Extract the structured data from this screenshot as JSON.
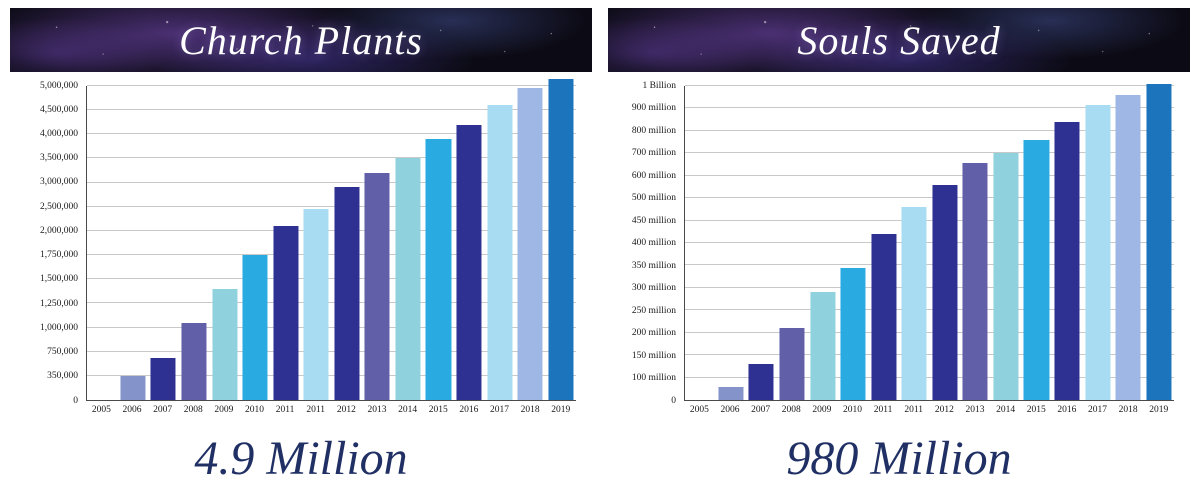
{
  "colors": {
    "periwinkle": "#8494cb",
    "navy": "#2e3192",
    "purple": "#625fa9",
    "light_teal": "#8fd1dd",
    "cyan": "#29abe2",
    "pale_blue": "#a8dcf2",
    "light_periwinkle": "#9fb7e4",
    "medium_blue": "#1c75bc",
    "caption_text": "#203064",
    "gridline": "#c9c9c9",
    "axis": "#4a4a4a"
  },
  "chart_data": [
    {
      "type": "bar",
      "title": "Church Plants",
      "caption": "4.9 Million",
      "xlabel": "",
      "ylabel": "",
      "grid": true,
      "legend": false,
      "x": [
        "2005",
        "2006",
        "2007",
        "2008",
        "2009",
        "2010",
        "2011",
        "2011",
        "2012",
        "2013",
        "2014",
        "2015",
        "2016",
        "2017",
        "2018",
        "2019"
      ],
      "values": [
        0,
        350000,
        650000,
        1050000,
        1400000,
        1750000,
        2100000,
        2450000,
        2900000,
        3200000,
        3500000,
        3900000,
        4200000,
        4600000,
        4950000,
        5150000
      ],
      "bar_colors": [
        "",
        "periwinkle",
        "navy",
        "purple",
        "light_teal",
        "cyan",
        "navy",
        "pale_blue",
        "navy",
        "purple",
        "light_teal",
        "cyan",
        "navy",
        "pale_blue",
        "light_periwinkle",
        "medium_blue"
      ],
      "y_gridlines": [
        {
          "label": "0",
          "value": 0
        },
        {
          "label": "350,000",
          "value": 350000
        },
        {
          "label": "750,000",
          "value": 750000
        },
        {
          "label": "1,000,000",
          "value": 1000000
        },
        {
          "label": "1,250,000",
          "value": 1250000
        },
        {
          "label": "1,500,000",
          "value": 1500000
        },
        {
          "label": "1,750,000",
          "value": 1750000
        },
        {
          "label": "2,000,000",
          "value": 2000000
        },
        {
          "label": "2,500,000",
          "value": 2500000
        },
        {
          "label": "3,000,000",
          "value": 3000000
        },
        {
          "label": "3,500,000",
          "value": 3500000
        },
        {
          "label": "4,000,000",
          "value": 4000000
        },
        {
          "label": "4,500,000",
          "value": 4500000
        },
        {
          "label": "5,000,000",
          "value": 5000000
        }
      ]
    },
    {
      "type": "bar",
      "title": "Souls Saved",
      "caption": "980 Million",
      "xlabel": "",
      "ylabel": "",
      "grid": true,
      "legend": false,
      "x": [
        "2005",
        "2006",
        "2007",
        "2008",
        "2009",
        "2010",
        "2011",
        "2011",
        "2012",
        "2013",
        "2014",
        "2015",
        "2016",
        "2017",
        "2018",
        "2019"
      ],
      "values": [
        0,
        60000000,
        130000000,
        210000000,
        290000000,
        345000000,
        420000000,
        480000000,
        560000000,
        655000000,
        700000000,
        760000000,
        840000000,
        915000000,
        960000000,
        1010000000
      ],
      "bar_colors": [
        "",
        "periwinkle",
        "navy",
        "purple",
        "light_teal",
        "cyan",
        "navy",
        "pale_blue",
        "navy",
        "purple",
        "light_teal",
        "cyan",
        "navy",
        "pale_blue",
        "light_periwinkle",
        "medium_blue"
      ],
      "y_gridlines": [
        {
          "label": "0",
          "value": 0
        },
        {
          "label": "100 million",
          "value": 100000000
        },
        {
          "label": "150 million",
          "value": 150000000
        },
        {
          "label": "200 million",
          "value": 200000000
        },
        {
          "label": "250 million",
          "value": 250000000
        },
        {
          "label": "300 million",
          "value": 300000000
        },
        {
          "label": "350 million",
          "value": 350000000
        },
        {
          "label": "400 million",
          "value": 400000000
        },
        {
          "label": "450 million",
          "value": 450000000
        },
        {
          "label": "500 million",
          "value": 500000000
        },
        {
          "label": "600 million",
          "value": 600000000
        },
        {
          "label": "700 million",
          "value": 700000000
        },
        {
          "label": "800 million",
          "value": 800000000
        },
        {
          "label": "900 million",
          "value": 900000000
        },
        {
          "label": "1 Billion",
          "value": 1000000000
        }
      ]
    }
  ]
}
